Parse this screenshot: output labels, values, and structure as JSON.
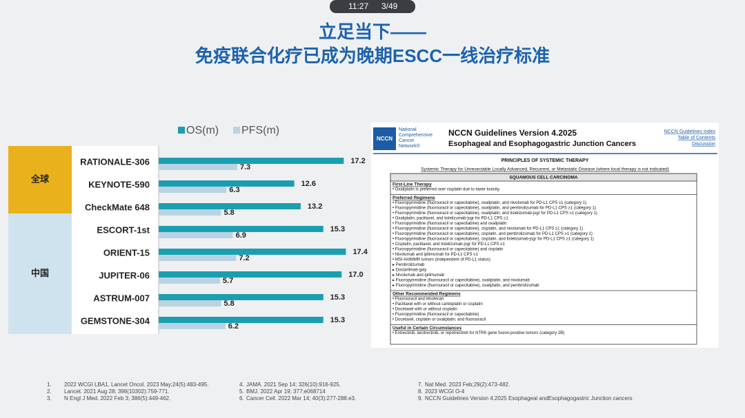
{
  "status_bar": {
    "time": "11:27",
    "page": "3/49"
  },
  "slide_title": [
    "立足当下——",
    "免疫联合化疗已成为晚期ESCC一线治疗标准"
  ],
  "chart_data": {
    "type": "bar",
    "orientation": "horizontal",
    "regions": [
      "全球",
      "中国"
    ],
    "categories": [
      "RATIONALE-306",
      "KEYNOTE-590",
      "CheckMate 648",
      "ESCORT-1st",
      "ORIENT-15",
      "JUPITER-06",
      "ASTRUM-007",
      "GEMSTONE-304"
    ],
    "series": [
      {
        "name": "OS(m)",
        "color": "#1a9fb0",
        "values": [
          17.2,
          12.6,
          13.2,
          15.3,
          17.4,
          17.0,
          15.3,
          15.3
        ],
        "value_labels": [
          "17.2",
          "12.6",
          "13.2",
          "15.3",
          "17.4",
          "17.0",
          "15.3",
          "15.3"
        ]
      },
      {
        "name": "PFS(m)",
        "color": "#b9d3e3",
        "values": [
          7.3,
          6.3,
          5.8,
          6.9,
          7.2,
          5.7,
          5.8,
          6.2
        ]
      }
    ]
  },
  "nccn": {
    "logo": "NCCN",
    "org": [
      "National",
      "Comprehensive",
      "Cancer",
      "Network®"
    ],
    "header": [
      "NCCN Guidelines Version 4.2025",
      "Esophageal and Esophagogastric Junction Cancers"
    ],
    "links": [
      "NCCN Guidelines Index",
      "Table of Contents",
      "Discussion"
    ],
    "section_title": "PRINCIPLES OF SYSTEMIC THERAPY",
    "subtitle": "Systemic Therapy for Unresectable Locally Advanced, Recurrent, or Metastatic Disease (where local therapy is not indicated)",
    "table_header": "SQUAMOUS CELL CARCINOMA",
    "blocks": [
      {
        "heading": "First-Line Therapy",
        "lines": [
          "• Oxaliplatin is preferred over cisplatin due to lower toxicity."
        ]
      },
      {
        "heading": "Preferred Regimens",
        "lines": [
          "• Fluoropyrimidine (fluorouracil or capecitabine), oxaliplatin, and nivolumab for PD-L1 CPS ≥1 (category 1)",
          "• Fluoropyrimidine (fluorouracil or capecitabine), oxaliplatin, and pembrolizumab for PD-L1 CPS ≥1 (category 1)",
          "• Fluoropyrimidine (fluorouracil or capecitabine), oxaliplatin, and tislelizumab-jsgr for PD-L1 CPS ≥1 (category 1)",
          "• Oxaliplatin, paclitaxel, and tislelizumab-jsgr for PD-L1 CPS ≥1",
          "• Fluoropyrimidine (fluorouracil or capecitabine) and oxaliplatin",
          "• Fluoropyrimidine (fluorouracil or capecitabine), cisplatin, and nivolumab for PD-L1 CPS ≥1 (category 1)",
          "• Fluoropyrimidine (fluorouracil or capecitabine), cisplatin, and pembrolizumab for PD-L1 CPS ≥1 (category 1)",
          "• Fluoropyrimidine (fluorouracil or capecitabine), cisplatin, and tislelizumab-jsgr for PD-L1 CPS ≥1 (category 1)",
          "• Cisplatin, paclitaxel, and tislelizumab-jsgr for PD-L1 CPS ≥1",
          "• Fluoropyrimidine (fluorouracil or capecitabine) and cisplatin",
          "• Nivolumab and ipilimumab for PD-L1 CPS ≥1",
          "• MSI-H/dMMR tumors (independent of PD-L1 status)",
          "   ▸ Pembrolizumab",
          "   ▸ Dostarlimab-gxly",
          "   ▸ Nivolumab and ipilimumab",
          "   ▸ Fluoropyrimidine (fluorouracil or capecitabine), oxaliplatin, and nivolumab",
          "   ▸ Fluoropyrimidine (fluorouracil or capecitabine), oxaliplatin, and pembrolizumab"
        ]
      },
      {
        "heading": "Other Recommended Regimens",
        "lines": [
          "• Fluorouracil and irinotecan",
          "• Paclitaxel with or without carboplatin or cisplatin",
          "• Docetaxel with or without cisplatin",
          "• Fluoropyrimidine (fluorouracil or capecitabine)",
          "• Docetaxel, cisplatin or oxaliplatin, and fluorouracil"
        ]
      },
      {
        "heading": "Useful in Certain Circumstances",
        "lines": [
          "• Entrectinib, larotrectinib, or repotrectinib for NTRK gene fusion-positive tumors (category 2B)"
        ]
      }
    ]
  },
  "references": [
    [
      "1.",
      "2022 WCGI LBA1. Lancet Oncol. 2023 May;24(5):483-495."
    ],
    [
      "2.",
      "Lancet. 2021 Aug 28;  398(10302):759-771."
    ],
    [
      "3.",
      "N Engl J Med. 2022 Feb 3;  386(5):449-462."
    ],
    [
      "4.",
      "JAMA. 2021 Sep 14;  326(10):916-925."
    ],
    [
      "5.",
      "BMJ. 2022 Apr 19;  377:e068714"
    ],
    [
      "6.",
      "Cancer Cell. 2022 Mar 14;  40(3):277-288.e3."
    ],
    [
      "7.",
      "Nat Med. 2023 Feb;29(2):473-482."
    ],
    [
      "8.",
      "2023 WCGI O-4"
    ],
    [
      "9.",
      "NCCN Guidelines Version 4.2025 Esophageal andEsophagogastric Junction cancers"
    ]
  ]
}
